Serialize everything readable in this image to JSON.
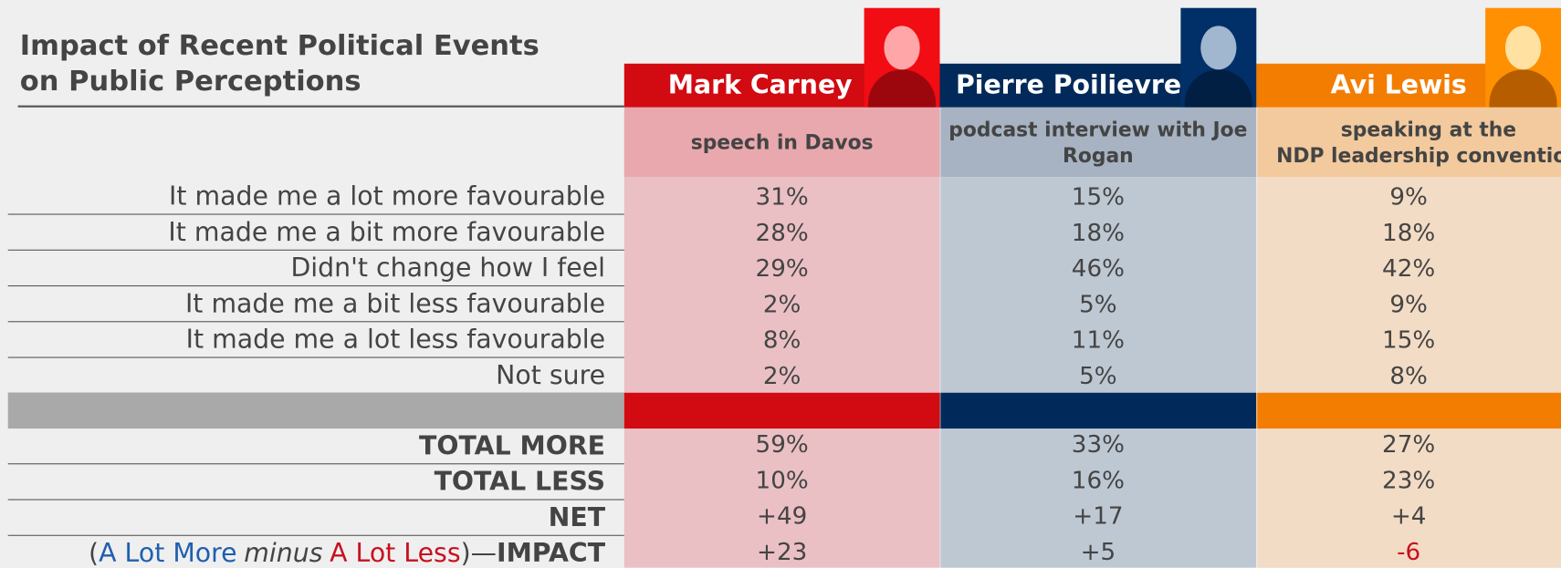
{
  "title": "Impact of Recent Political Events on Public Perceptions",
  "rows": [
    "It made me a lot more favourable",
    "It made me a bit more favourable",
    "Didn't change how I feel",
    "It made me a bit less favourable",
    "It made me a lot less favourable",
    "Not sure"
  ],
  "summary_rows": [
    "TOTAL MORE",
    "TOTAL LESS",
    "NET"
  ],
  "impact_label": {
    "open": "(",
    "more": "A Lot More",
    "minus": "minus",
    "less": "A Lot Less",
    "close": ")—",
    "impact": "IMPACT"
  },
  "columns": [
    {
      "name": "Mark Carney",
      "event": "speech in Davos",
      "color": "#d20a11",
      "event_bg": "#e8a8ad",
      "cell_bg": "#eac0c4",
      "values": [
        "31%",
        "28%",
        "29%",
        "2%",
        "8%",
        "2%"
      ],
      "summary": [
        "59%",
        "10%",
        "+49"
      ],
      "impact": "+23"
    },
    {
      "name": "Pierre Poilievre",
      "event": "podcast interview with Joe Rogan",
      "color": "#012a5a",
      "event_bg": "#a7b3c2",
      "cell_bg": "#bec8d3",
      "values": [
        "15%",
        "18%",
        "46%",
        "5%",
        "11%",
        "5%"
      ],
      "summary": [
        "33%",
        "16%",
        "+17"
      ],
      "impact": "+5"
    },
    {
      "name": "Avi Lewis",
      "event": "speaking at the\nNDP leadership convention",
      "color": "#f37d01",
      "event_bg": "#f2ca9e",
      "cell_bg": "#f3dcc5",
      "values": [
        "9%",
        "18%",
        "42%",
        "9%",
        "15%",
        "8%"
      ],
      "summary": [
        "27%",
        "23%",
        "+4"
      ],
      "impact": "-6"
    }
  ]
}
